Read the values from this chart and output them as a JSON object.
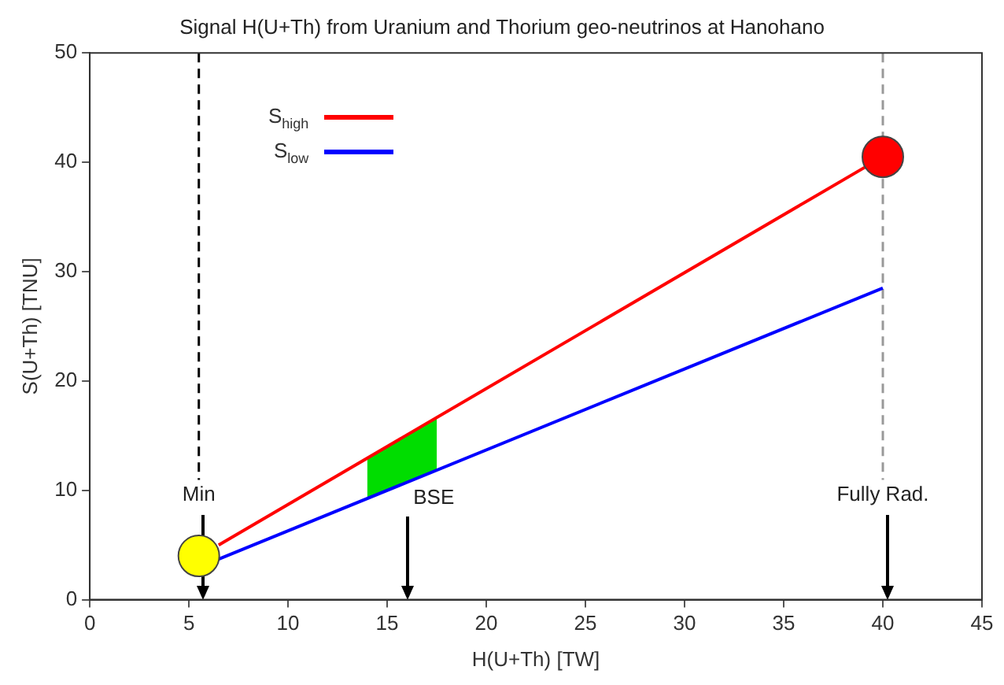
{
  "chart_data": {
    "type": "line",
    "title": "Signal H(U+Th) from Uranium and Thorium geo-neutrinos at Hanohano",
    "xlabel": "H(U+Th) [TW]",
    "ylabel": "S(U+Th) [TNU]",
    "xlim": [
      0,
      45
    ],
    "xticks": [
      0,
      5,
      10,
      15,
      20,
      25,
      30,
      35,
      40,
      45
    ],
    "ylim": [
      0,
      50
    ],
    "yticks": [
      0,
      10,
      20,
      30,
      40,
      50
    ],
    "legend": "top left",
    "series": [
      {
        "name": "S$_{high}$",
        "color": "#ff0000",
        "x": [
          6.5,
          40
        ],
        "values": [
          5,
          40.5
        ]
      },
      {
        "name": "S$_{low}$",
        "color": "#0000ff",
        "x": [
          6.5,
          40
        ],
        "values": [
          3.7,
          28.5
        ]
      },
      {
        "type": "scatter",
        "marker": "circle",
        "color": "#ffff00",
        "x": [
          5.5
        ],
        "values": [
          4
        ]
      },
      {
        "type": "scatter",
        "marker": "circle",
        "color": "#ff0000",
        "x": [
          40
        ],
        "values": [
          40.5
        ]
      }
    ],
    "ref_lines": [
      {
        "axis": "x",
        "value": 5.5,
        "label": "Min",
        "color": "#000000",
        "line_style": "dashed"
      },
      {
        "axis": "x",
        "value": 40,
        "label": "Fully Rad.",
        "color": "#999999",
        "line_style": "dashed"
      }
    ],
    "bands": [
      {
        "axis": "x",
        "from": 14,
        "to": 17.5,
        "color": "#00dd00"
      }
    ],
    "annotations": [
      {
        "text": "BSE",
        "x": 16,
        "y": 10.8
      }
    ]
  }
}
